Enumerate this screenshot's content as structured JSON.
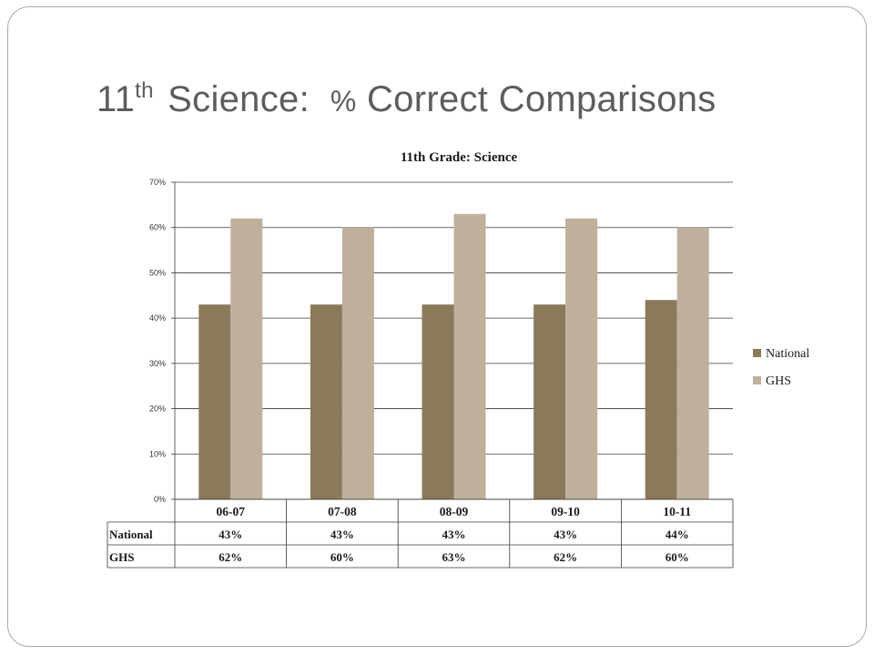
{
  "slide": {
    "title_main": "11",
    "title_sup": "th",
    "title_rest_1": " Science:  ",
    "title_pct": "%",
    "title_rest_2": " Correct Comparisons"
  },
  "chart_data": {
    "type": "bar",
    "title": "11th Grade: Science",
    "categories": [
      "06-07",
      "07-08",
      "08-09",
      "09-10",
      "10-11"
    ],
    "series": [
      {
        "name": "National",
        "values": [
          43,
          43,
          43,
          43,
          44
        ],
        "labels": [
          "43%",
          "43%",
          "43%",
          "43%",
          "44%"
        ],
        "color": "#8b7a5a"
      },
      {
        "name": "GHS",
        "values": [
          62,
          60,
          63,
          62,
          60
        ],
        "labels": [
          "62%",
          "60%",
          "63%",
          "62%",
          "60%"
        ],
        "color": "#bfb09c"
      }
    ],
    "ylim": [
      0,
      70
    ],
    "yticks": [
      0,
      10,
      20,
      30,
      40,
      50,
      60,
      70
    ],
    "ytick_labels": [
      "0%",
      "10%",
      "20%",
      "30%",
      "40%",
      "50%",
      "60%",
      "70%"
    ],
    "grid": true,
    "legend": "right",
    "data_table": true
  }
}
